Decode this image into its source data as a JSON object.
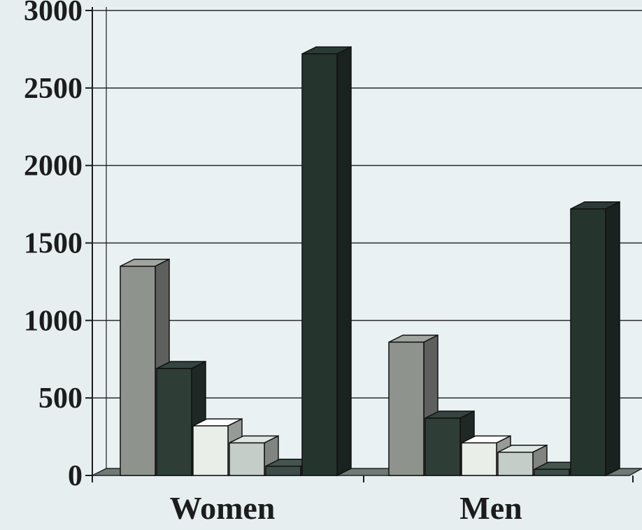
{
  "chart_data": {
    "type": "bar",
    "categories": [
      "Women",
      "Men"
    ],
    "series": [
      {
        "values": [
          1350,
          860
        ],
        "color": "#8f938e"
      },
      {
        "values": [
          690,
          370
        ],
        "color": "#2f3d37"
      },
      {
        "values": [
          320,
          210
        ],
        "color": "#e9eee9"
      },
      {
        "values": [
          210,
          150
        ],
        "color": "#c5cdc8"
      },
      {
        "values": [
          60,
          40
        ],
        "color": "#3d4c46"
      },
      {
        "values": [
          2720,
          1720
        ],
        "color": "#26342e"
      }
    ],
    "ylim": [
      0,
      3000
    ],
    "yticks": [
      "0",
      "500",
      "1000",
      "1500",
      "2000",
      "2500",
      "3000"
    ],
    "grid": true,
    "style": "3d"
  }
}
